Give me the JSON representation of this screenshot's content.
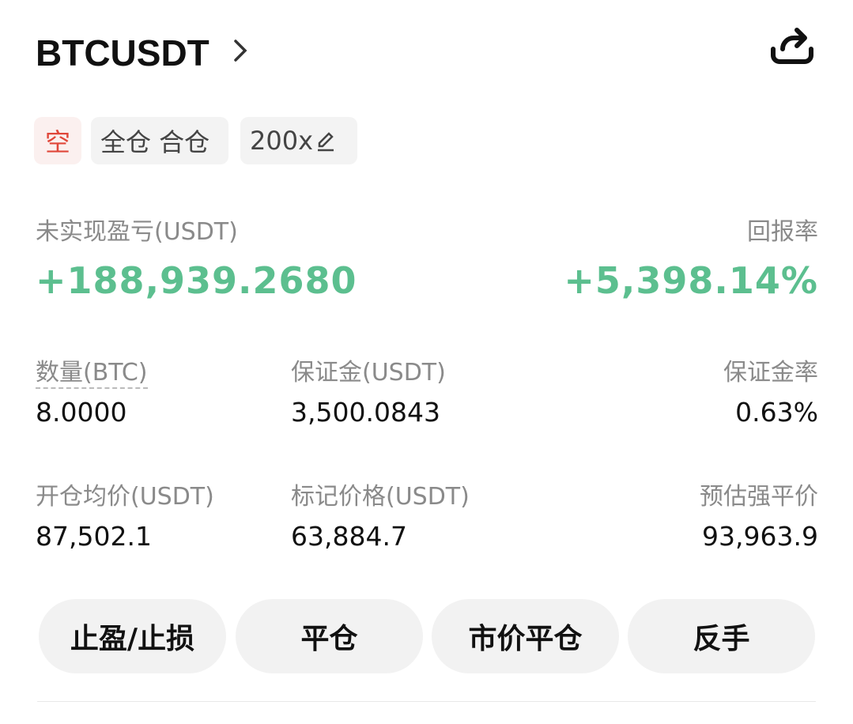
{
  "header": {
    "symbol": "BTCUSDT"
  },
  "tags": {
    "side": "空",
    "margin_mode": "全仓 合仓",
    "leverage": "200x"
  },
  "pnl": {
    "label": "未实现盈亏(USDT)",
    "value": "+188,939.2680",
    "roe_label": "回报率",
    "roe_value": "+5,398.14%"
  },
  "stats": [
    {
      "label": "数量(BTC)",
      "value": "8.0000"
    },
    {
      "label": "保证金(USDT)",
      "value": "3,500.0843"
    },
    {
      "label": "保证金率",
      "value": "0.63%"
    },
    {
      "label": "开仓均价(USDT)",
      "value": "87,502.1"
    },
    {
      "label": "标记价格(USDT)",
      "value": "63,884.7"
    },
    {
      "label": "预估强平价",
      "value": "93,963.9"
    }
  ],
  "buttons": {
    "tpsl": "止盈/止损",
    "close": "平仓",
    "market_close": "市价平仓",
    "reverse": "反手"
  },
  "colors": {
    "profit": "#5cbf8f",
    "short": "#e0473a"
  }
}
